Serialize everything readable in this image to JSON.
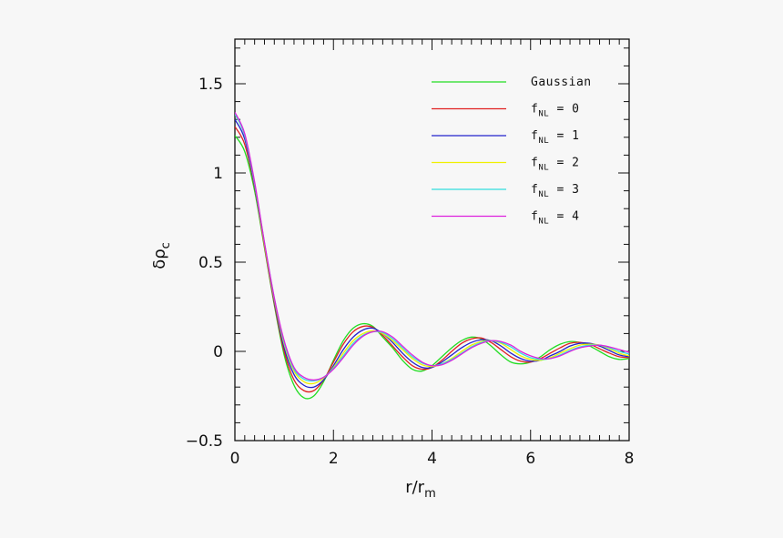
{
  "chart_data": {
    "type": "line",
    "xlabel": "r/r",
    "xlabel_sub": "m",
    "ylabel": "δρ",
    "ylabel_sub": "c",
    "xlim": [
      0,
      8
    ],
    "ylim": [
      -0.5,
      1.75
    ],
    "x_ticks": [
      0,
      2,
      4,
      6,
      8
    ],
    "x_tick_labels": [
      "0",
      "2",
      "4",
      "6",
      "8"
    ],
    "y_ticks": [
      -0.5,
      0,
      0.5,
      1,
      1.5
    ],
    "y_tick_labels": [
      "−0.5",
      "0",
      "0.5",
      "1",
      "1.5"
    ],
    "legend_position": "top-right",
    "grid": false,
    "series": [
      {
        "name": "Gaussian",
        "label_main": "Gaussian",
        "label_sub": "",
        "label_suffix": "",
        "color": "#22dd22",
        "x": [
          0,
          0.2,
          0.4,
          0.6,
          0.8,
          1.0,
          1.2,
          1.4,
          1.6,
          1.8,
          2.0,
          2.2,
          2.4,
          2.6,
          2.8,
          3.0,
          3.2,
          3.4,
          3.6,
          3.8,
          4.0,
          4.2,
          4.4,
          4.6,
          4.8,
          5.0,
          5.2,
          5.4,
          5.6,
          5.8,
          6.0,
          6.2,
          6.4,
          6.6,
          6.8,
          7.0,
          7.2,
          7.4,
          7.6,
          7.8,
          8.0
        ],
        "y": [
          1.21,
          1.12,
          0.9,
          0.58,
          0.26,
          -0.02,
          -0.19,
          -0.26,
          -0.25,
          -0.17,
          -0.05,
          0.06,
          0.13,
          0.155,
          0.14,
          0.08,
          0.02,
          -0.05,
          -0.1,
          -0.11,
          -0.08,
          -0.03,
          0.02,
          0.06,
          0.08,
          0.07,
          0.03,
          -0.02,
          -0.06,
          -0.07,
          -0.06,
          -0.03,
          0.01,
          0.04,
          0.055,
          0.05,
          0.03,
          0.0,
          -0.03,
          -0.045,
          -0.04
        ]
      },
      {
        "name": "fNL = 0",
        "label_main": "f",
        "label_sub": "NL",
        "label_suffix": " = 0",
        "color": "#e02020",
        "x": [
          0,
          0.2,
          0.4,
          0.6,
          0.8,
          1.0,
          1.2,
          1.4,
          1.6,
          1.8,
          2.0,
          2.2,
          2.4,
          2.6,
          2.8,
          3.0,
          3.2,
          3.4,
          3.6,
          3.8,
          4.0,
          4.2,
          4.4,
          4.6,
          4.8,
          5.0,
          5.2,
          5.4,
          5.6,
          5.8,
          6.0,
          6.2,
          6.4,
          6.6,
          6.8,
          7.0,
          7.2,
          7.4,
          7.6,
          7.8,
          8.0
        ],
        "y": [
          1.26,
          1.16,
          0.92,
          0.59,
          0.27,
          0.0,
          -0.16,
          -0.22,
          -0.22,
          -0.16,
          -0.06,
          0.04,
          0.11,
          0.14,
          0.135,
          0.09,
          0.03,
          -0.03,
          -0.08,
          -0.1,
          -0.09,
          -0.05,
          0.0,
          0.045,
          0.07,
          0.075,
          0.05,
          0.01,
          -0.03,
          -0.055,
          -0.06,
          -0.04,
          -0.01,
          0.02,
          0.045,
          0.05,
          0.04,
          0.015,
          -0.01,
          -0.03,
          -0.035
        ]
      },
      {
        "name": "fNL = 1",
        "label_main": "f",
        "label_sub": "NL",
        "label_suffix": " = 1",
        "color": "#2222cc",
        "x": [
          0,
          0.2,
          0.4,
          0.6,
          0.8,
          1.0,
          1.2,
          1.4,
          1.6,
          1.8,
          2.0,
          2.2,
          2.4,
          2.6,
          2.8,
          3.0,
          3.2,
          3.4,
          3.6,
          3.8,
          4.0,
          4.2,
          4.4,
          4.6,
          4.8,
          5.0,
          5.2,
          5.4,
          5.6,
          5.8,
          6.0,
          6.2,
          6.4,
          6.6,
          6.8,
          7.0,
          7.2,
          7.4,
          7.6,
          7.8,
          8.0
        ],
        "y": [
          1.3,
          1.19,
          0.93,
          0.6,
          0.28,
          0.02,
          -0.13,
          -0.19,
          -0.2,
          -0.16,
          -0.08,
          0.01,
          0.08,
          0.12,
          0.13,
          0.1,
          0.05,
          -0.01,
          -0.06,
          -0.09,
          -0.09,
          -0.06,
          -0.02,
          0.02,
          0.05,
          0.065,
          0.06,
          0.03,
          -0.01,
          -0.04,
          -0.055,
          -0.05,
          -0.025,
          0.0,
          0.03,
          0.045,
          0.045,
          0.03,
          0.005,
          -0.02,
          -0.03
        ]
      },
      {
        "name": "fNL = 2",
        "label_main": "f",
        "label_sub": "NL",
        "label_suffix": " = 2",
        "color": "#f0f000",
        "x": [
          0,
          0.2,
          0.4,
          0.6,
          0.8,
          1.0,
          1.2,
          1.4,
          1.6,
          1.8,
          2.0,
          2.2,
          2.4,
          2.6,
          2.8,
          3.0,
          3.2,
          3.4,
          3.6,
          3.8,
          4.0,
          4.2,
          4.4,
          4.6,
          4.8,
          5.0,
          5.2,
          5.4,
          5.6,
          5.8,
          6.0,
          6.2,
          6.4,
          6.6,
          6.8,
          7.0,
          7.2,
          7.4,
          7.6,
          7.8,
          8.0
        ],
        "y": [
          1.33,
          1.21,
          0.94,
          0.6,
          0.29,
          0.04,
          -0.11,
          -0.17,
          -0.18,
          -0.15,
          -0.09,
          -0.01,
          0.06,
          0.1,
          0.115,
          0.1,
          0.06,
          0.01,
          -0.04,
          -0.075,
          -0.085,
          -0.07,
          -0.04,
          0.0,
          0.035,
          0.055,
          0.06,
          0.045,
          0.01,
          -0.025,
          -0.045,
          -0.05,
          -0.035,
          -0.01,
          0.015,
          0.035,
          0.04,
          0.035,
          0.015,
          -0.01,
          -0.025
        ]
      },
      {
        "name": "fNL = 3",
        "label_main": "f",
        "label_sub": "NL",
        "label_suffix": " = 3",
        "color": "#33dddd",
        "x": [
          0,
          0.2,
          0.4,
          0.6,
          0.8,
          1.0,
          1.2,
          1.4,
          1.6,
          1.8,
          2.0,
          2.2,
          2.4,
          2.6,
          2.8,
          3.0,
          3.2,
          3.4,
          3.6,
          3.8,
          4.0,
          4.2,
          4.4,
          4.6,
          4.8,
          5.0,
          5.2,
          5.4,
          5.6,
          5.8,
          6.0,
          6.2,
          6.4,
          6.6,
          6.8,
          7.0,
          7.2,
          7.4,
          7.6,
          7.8,
          8.0
        ],
        "y": [
          1.33,
          1.21,
          0.94,
          0.61,
          0.3,
          0.05,
          -0.1,
          -0.155,
          -0.165,
          -0.145,
          -0.095,
          -0.025,
          0.045,
          0.09,
          0.11,
          0.105,
          0.07,
          0.02,
          -0.03,
          -0.065,
          -0.08,
          -0.07,
          -0.045,
          -0.01,
          0.025,
          0.05,
          0.06,
          0.05,
          0.025,
          -0.01,
          -0.035,
          -0.045,
          -0.04,
          -0.02,
          0.005,
          0.025,
          0.035,
          0.035,
          0.02,
          0.0,
          -0.015
        ]
      },
      {
        "name": "fNL = 4",
        "label_main": "f",
        "label_sub": "NL",
        "label_suffix": " = 4",
        "color": "#dd22dd",
        "x": [
          0,
          0.2,
          0.4,
          0.6,
          0.8,
          1.0,
          1.2,
          1.4,
          1.6,
          1.8,
          2.0,
          2.2,
          2.4,
          2.6,
          2.8,
          3.0,
          3.2,
          3.4,
          3.6,
          3.8,
          4.0,
          4.2,
          4.4,
          4.6,
          4.8,
          5.0,
          5.2,
          5.4,
          5.6,
          5.8,
          6.0,
          6.2,
          6.4,
          6.6,
          6.8,
          7.0,
          7.2,
          7.4,
          7.6,
          7.8,
          8.0
        ],
        "y": [
          1.34,
          1.22,
          0.95,
          0.61,
          0.3,
          0.06,
          -0.09,
          -0.145,
          -0.16,
          -0.145,
          -0.1,
          -0.035,
          0.035,
          0.085,
          0.11,
          0.11,
          0.08,
          0.03,
          -0.02,
          -0.06,
          -0.08,
          -0.075,
          -0.05,
          -0.015,
          0.02,
          0.045,
          0.06,
          0.055,
          0.035,
          0.0,
          -0.025,
          -0.04,
          -0.04,
          -0.025,
          0.0,
          0.02,
          0.03,
          0.035,
          0.025,
          0.01,
          -0.005
        ]
      }
    ]
  }
}
